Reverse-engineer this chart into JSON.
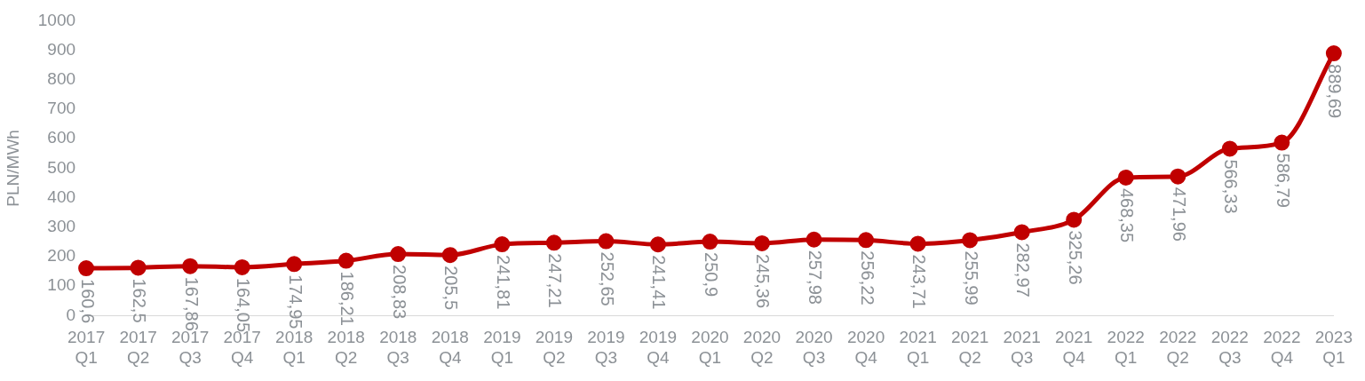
{
  "chart_data": {
    "type": "line",
    "ylabel": "PLN/MWh",
    "categories": [
      "2017 Q1",
      "2017 Q2",
      "2017 Q3",
      "2017 Q4",
      "2018 Q1",
      "2018 Q2",
      "2018 Q3",
      "2018 Q4",
      "2019 Q1",
      "2019 Q2",
      "2019 Q3",
      "2019 Q4",
      "2020 Q1",
      "2020 Q2",
      "2020 Q3",
      "2020 Q4",
      "2021 Q1",
      "2021 Q2",
      "2021 Q3",
      "2021 Q4",
      "2022 Q1",
      "2022 Q2",
      "2022 Q3",
      "2022 Q4",
      "2023 Q1"
    ],
    "series": [
      {
        "color": "#c00000",
        "values": [
          160.6,
          162.5,
          167.86,
          164.05,
          174.95,
          186.21,
          208.83,
          205.5,
          241.81,
          247.21,
          252.65,
          241.41,
          250.9,
          245.36,
          257.98,
          256.22,
          243.71,
          255.99,
          282.97,
          325.26,
          468.35,
          471.96,
          566.33,
          586.79,
          889.69
        ],
        "value_labels": [
          "160,6",
          "162,5",
          "167,86",
          "164,05",
          "174,95",
          "186,21",
          "208,83",
          "205,5",
          "241,81",
          "247,21",
          "252,65",
          "241,41",
          "250,9",
          "245,36",
          "257,98",
          "256,22",
          "243,71",
          "255,99",
          "282,97",
          "325,26",
          "468,35",
          "471,96",
          "566,33",
          "586,79",
          "889,69"
        ]
      }
    ],
    "ylim": [
      0,
      1000
    ],
    "yticks": [
      0,
      100,
      200,
      300,
      400,
      500,
      600,
      700,
      800,
      900,
      1000
    ],
    "grid": false,
    "legend": false,
    "marker": "circle",
    "line_style": "solid"
  }
}
